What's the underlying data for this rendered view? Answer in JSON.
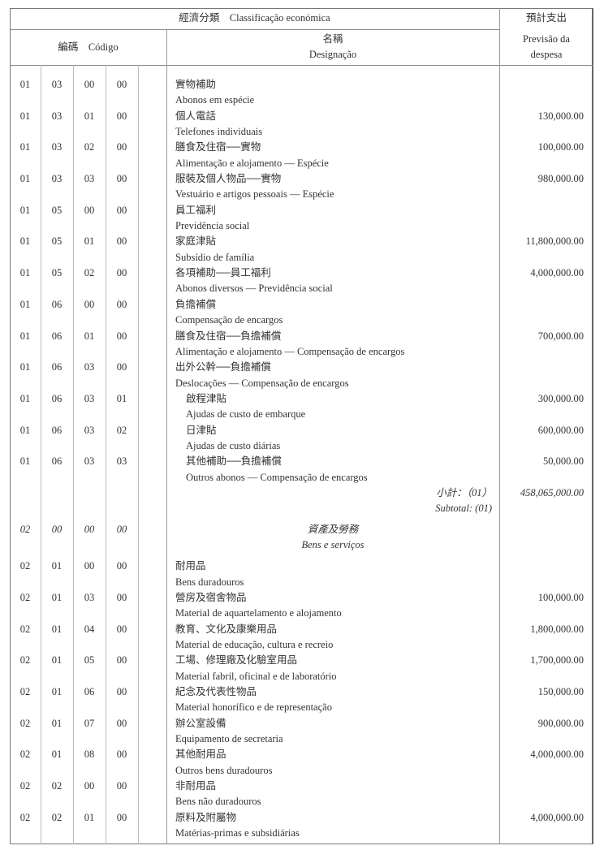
{
  "header": {
    "classification": "經濟分類　Classificação económica",
    "code": "編碼　Código",
    "name_zh": "名稱",
    "name_pt": "Designação",
    "forecast_zh": "預計支出",
    "forecast_pt_1": "Previsão da",
    "forecast_pt_2": "despesa"
  },
  "rows_a": [
    {
      "code": [
        "01",
        "03",
        "00",
        "00"
      ],
      "zh": "實物補助",
      "pt": "Abonos em espécie",
      "amount": ""
    },
    {
      "code": [
        "01",
        "03",
        "01",
        "00"
      ],
      "zh": "個人電話",
      "pt": "Telefones individuais",
      "amount": "130,000.00"
    },
    {
      "code": [
        "01",
        "03",
        "02",
        "00"
      ],
      "zh": "膳食及住宿──實物",
      "pt": "Alimentação e alojamento — Espécie",
      "amount": "100,000.00"
    },
    {
      "code": [
        "01",
        "03",
        "03",
        "00"
      ],
      "zh": "服裝及個人物品──實物",
      "pt": "Vestuário e artigos pessoais — Espécie",
      "amount": "980,000.00"
    },
    {
      "code": [
        "01",
        "05",
        "00",
        "00"
      ],
      "zh": "員工福利",
      "pt": "Previdência social",
      "amount": ""
    },
    {
      "code": [
        "01",
        "05",
        "01",
        "00"
      ],
      "zh": "家庭津貼",
      "pt": "Subsídio de família",
      "amount": "11,800,000.00"
    },
    {
      "code": [
        "01",
        "05",
        "02",
        "00"
      ],
      "zh": "各項補助──員工福利",
      "pt": "Abonos diversos — Previdência social",
      "amount": "4,000,000.00"
    },
    {
      "code": [
        "01",
        "06",
        "00",
        "00"
      ],
      "zh": "負擔補償",
      "pt": "Compensação de encargos",
      "amount": ""
    },
    {
      "code": [
        "01",
        "06",
        "01",
        "00"
      ],
      "zh": "膳食及住宿──負擔補償",
      "pt": "Alimentação e alojamento — Compensação de encargos",
      "amount": "700,000.00"
    },
    {
      "code": [
        "01",
        "06",
        "03",
        "00"
      ],
      "zh": "出外公幹──負擔補償",
      "pt": "Deslocações — Compensação de encargos",
      "amount": ""
    },
    {
      "code": [
        "01",
        "06",
        "03",
        "01"
      ],
      "zh": "啟程津貼",
      "pt": "Ajudas de custo de embarque",
      "amount": "300,000.00",
      "indent": true
    },
    {
      "code": [
        "01",
        "06",
        "03",
        "02"
      ],
      "zh": "日津貼",
      "pt": "Ajudas de custo diárias",
      "amount": "600,000.00",
      "indent": true
    },
    {
      "code": [
        "01",
        "06",
        "03",
        "03"
      ],
      "zh": "其他補助──負擔補償",
      "pt": "Outros abonos — Compensação de encargos",
      "amount": "50,000.00",
      "indent": true
    }
  ],
  "subtotal": {
    "zh": "小計：（01）",
    "pt": "Subtotal: (01)",
    "amount": "458,065,000.00"
  },
  "section": {
    "code": [
      "02",
      "00",
      "00",
      "00"
    ],
    "zh": "資產及勞務",
    "pt": "Bens e serviços"
  },
  "rows_b": [
    {
      "code": [
        "02",
        "01",
        "00",
        "00"
      ],
      "zh": "耐用品",
      "pt": "Bens duradouros",
      "amount": ""
    },
    {
      "code": [
        "02",
        "01",
        "03",
        "00"
      ],
      "zh": "營房及宿舍物品",
      "pt": "Material de aquartelamento e alojamento",
      "amount": "100,000.00"
    },
    {
      "code": [
        "02",
        "01",
        "04",
        "00"
      ],
      "zh": "教育、文化及康樂用品",
      "pt": "Material de educação, cultura e recreio",
      "amount": "1,800,000.00"
    },
    {
      "code": [
        "02",
        "01",
        "05",
        "00"
      ],
      "zh": "工場、修理廠及化驗室用品",
      "pt": "Material fabril, oficinal e de laboratório",
      "amount": "1,700,000.00"
    },
    {
      "code": [
        "02",
        "01",
        "06",
        "00"
      ],
      "zh": "紀念及代表性物品",
      "pt": "Material honorífico e de representação",
      "amount": "150,000.00"
    },
    {
      "code": [
        "02",
        "01",
        "07",
        "00"
      ],
      "zh": "辦公室設備",
      "pt": "Equipamento de secretaria",
      "amount": "900,000.00"
    },
    {
      "code": [
        "02",
        "01",
        "08",
        "00"
      ],
      "zh": "其他耐用品",
      "pt": "Outros bens duradouros",
      "amount": "4,000,000.00"
    },
    {
      "code": [
        "02",
        "02",
        "00",
        "00"
      ],
      "zh": "非耐用品",
      "pt": "Bens não duradouros",
      "amount": ""
    },
    {
      "code": [
        "02",
        "02",
        "01",
        "00"
      ],
      "zh": "原料及附屬物",
      "pt": "Matérias-primas e subsidiárias",
      "amount": "4,000,000.00"
    }
  ]
}
